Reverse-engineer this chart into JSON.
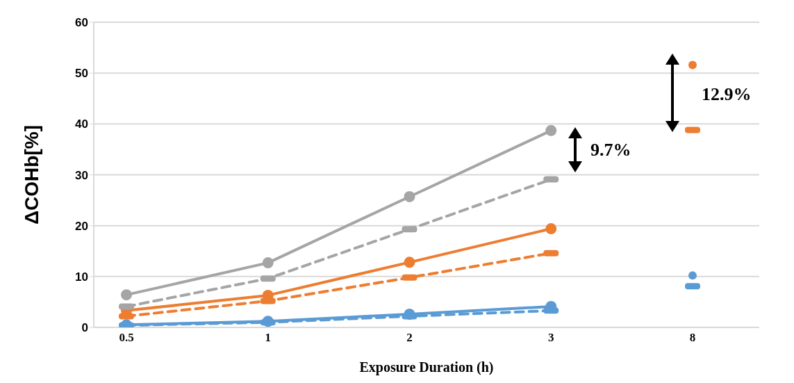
{
  "chart_data": {
    "type": "line",
    "xlabel": "Exposure Duration (h)",
    "ylabel": "ΔCOHb[%]",
    "categories": [
      "0.5",
      "1",
      "2",
      "3",
      "8"
    ],
    "ylim": [
      0,
      60
    ],
    "yticks": [
      0,
      10,
      20,
      30,
      40,
      50,
      60
    ],
    "grid": "y",
    "series": [
      {
        "type": "line",
        "color": "#a5a5a5",
        "line_style": "solid",
        "marker": "circle",
        "values": [
          6.4,
          12.7,
          25.7,
          38.7,
          null
        ]
      },
      {
        "type": "line",
        "color": "#a5a5a5",
        "line_style": "dashed",
        "marker": "square",
        "values": [
          4.1,
          9.6,
          19.3,
          29.1,
          null
        ]
      },
      {
        "type": "line",
        "color": "#ed7d31",
        "line_style": "solid",
        "marker": "circle",
        "values": [
          3.3,
          6.3,
          12.8,
          19.4,
          null
        ]
      },
      {
        "type": "line",
        "color": "#ed7d31",
        "line_style": "dashed",
        "marker": "square",
        "values": [
          2.2,
          5.2,
          9.8,
          14.6,
          null
        ]
      },
      {
        "type": "line",
        "color": "#5b9bd5",
        "line_style": "solid",
        "marker": "circle",
        "values": [
          0.5,
          1.2,
          2.6,
          4.1,
          null
        ]
      },
      {
        "type": "line",
        "color": "#5b9bd5",
        "line_style": "dashed",
        "marker": "square",
        "values": [
          0.4,
          1.0,
          2.2,
          3.3,
          null
        ]
      },
      {
        "type": "scatter",
        "color": "#ed7d31",
        "marker": "circle",
        "values": [
          null,
          null,
          null,
          null,
          51.6
        ]
      },
      {
        "type": "scatter",
        "color": "#ed7d31",
        "marker": "square",
        "values": [
          null,
          null,
          null,
          null,
          38.8
        ]
      },
      {
        "type": "scatter",
        "color": "#5b9bd5",
        "marker": "circle",
        "values": [
          null,
          null,
          null,
          null,
          10.2
        ]
      },
      {
        "type": "scatter",
        "color": "#5b9bd5",
        "marker": "square",
        "values": [
          null,
          null,
          null,
          null,
          8.1
        ]
      }
    ],
    "annotations": [
      "9.7%",
      "12.9%"
    ]
  }
}
